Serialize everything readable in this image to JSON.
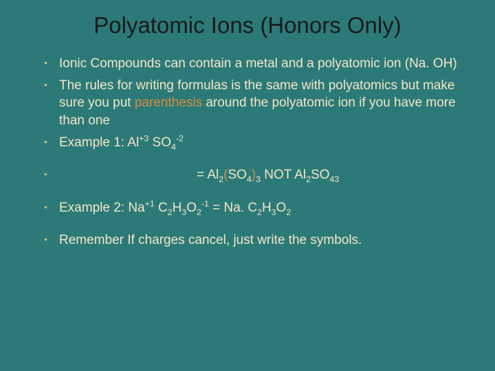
{
  "slide": {
    "background_color": "#2b7a78",
    "title": {
      "text": "Polyatomic Ions (Honors Only)",
      "color": "#1a1a1a",
      "fontsize": 33
    },
    "bullet_color": "#d9b86b",
    "body_text_color": "#f5e6c8",
    "highlight_color": "#d98c3a",
    "body_fontsize": 19,
    "bullets": [
      {
        "text": "Ionic Compounds can contain a metal and a polyatomic ion (Na. OH)"
      },
      {
        "parts": [
          {
            "text": "The rules for writing formulas is the same with polyatomics but make sure you put "
          },
          {
            "text": "parenthesis",
            "highlight": true
          },
          {
            "text": " around the polyatomic ion if you have more than one"
          }
        ]
      },
      {
        "formula_html": "Example 1:  Al<sup>+3</sup>  SO<sub>4</sub><sup>-2</sup>"
      },
      {
        "spaced": true,
        "formula_html": "<span class=\"indent-eq\">=   Al<sub>2</sub><span class=\"highlight\">(</span>SO<sub>4</sub><span class=\"highlight\">)</span><sub>3</sub>   NOT Al<sub>2</sub>SO<sub>43</sub></span>"
      },
      {
        "spaced": true,
        "formula_html": "Example 2:  Na<sup>+1</sup>  C<sub>2</sub>H<sub>3</sub>O<sub>2</sub><sup>-1</sup> = Na. C<sub>2</sub>H<sub>3</sub>O<sub>2</sub>"
      },
      {
        "spaced": true,
        "text": "Remember If charges cancel, just write the symbols."
      }
    ]
  }
}
